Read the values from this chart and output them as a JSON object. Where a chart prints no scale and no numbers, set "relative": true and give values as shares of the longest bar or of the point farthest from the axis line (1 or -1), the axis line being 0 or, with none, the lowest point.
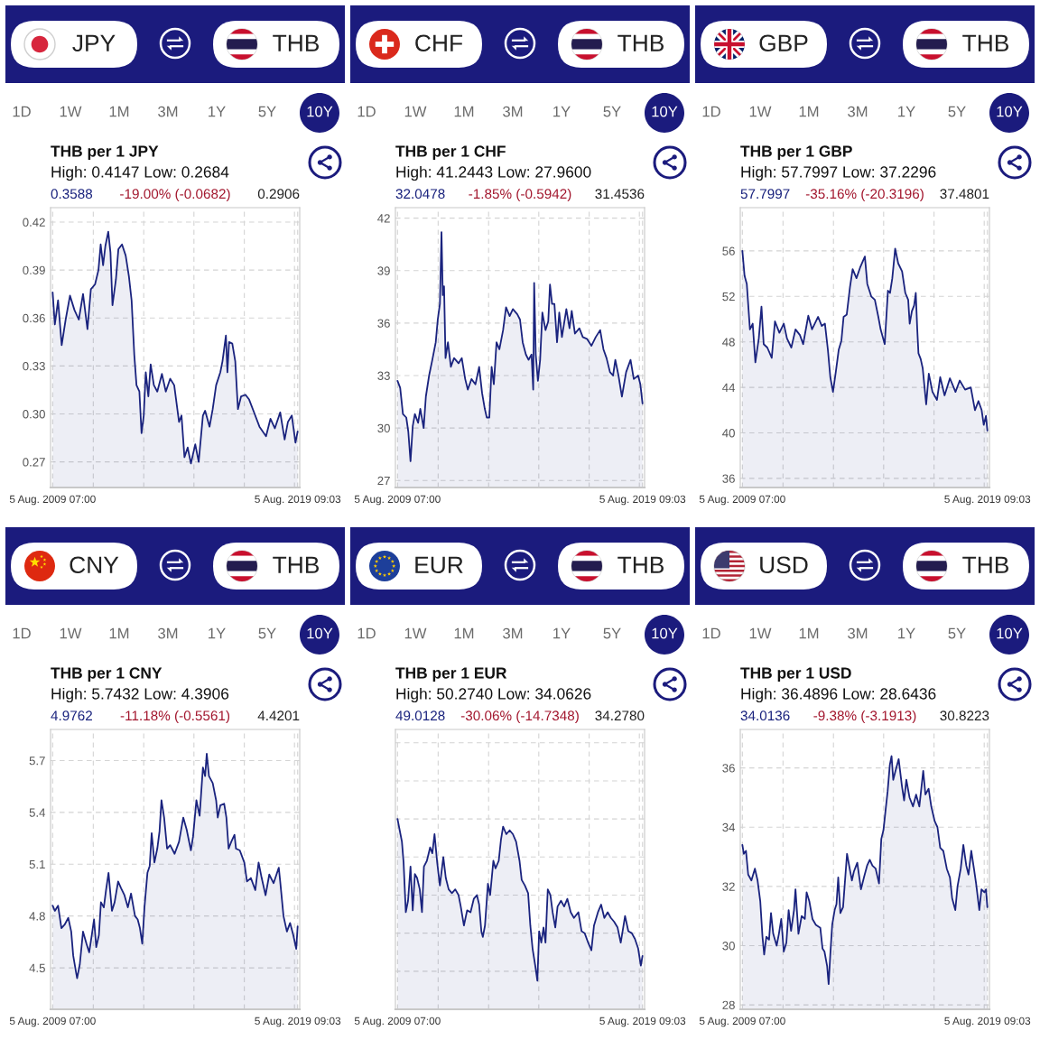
{
  "chart_data": [
    {
      "type": "area",
      "title": "THB per 1 JPY",
      "subtitle": "High: 0.4147 Low: 0.2684",
      "annotations": [
        "JPY",
        "THB",
        "1D",
        "1W",
        "1M",
        "3M",
        "1Y",
        "5Y",
        "10Y",
        "0.3588",
        "-19.00% (-0.0682)",
        "0.2906"
      ],
      "color": "#1a237e",
      "grid": true,
      "xlim": [
        "2009-07-05",
        "2019-09-05"
      ],
      "xticks": [
        {
          "value": "2009-08-05T07:00",
          "label": "5 Aug. 2009 07:00"
        },
        {
          "value": "2011-04-03",
          "label": null
        },
        {
          "value": "2013-04-24",
          "label": null
        },
        {
          "value": "2015-05-12",
          "label": null
        },
        {
          "value": "2017-06-01",
          "label": null
        },
        {
          "value": "2019-06-19",
          "label": null
        },
        {
          "value": "2019-08-05T09:03",
          "label": "5 Aug. 2019 09:03"
        }
      ],
      "ylim": [
        0.254,
        0.429
      ],
      "yticks": [
        0.27,
        {
          "value": 0.3,
          "label": "0.30"
        },
        0.33,
        0.36,
        0.39,
        0.42
      ],
      "x": [
        "2009-08-05T07:00",
        "2009-09-07",
        "2009-10-25",
        "2009-12-18",
        "2010-02-15",
        "2010-04-21",
        "2010-06-26",
        "2010-08-30",
        "2010-11-01",
        "2011-01-06",
        "2011-02-26",
        "2011-04-29",
        "2011-06-19",
        "2011-07-22",
        "2011-08-27",
        "2011-09-30",
        "2011-11-12",
        "2011-12-15",
        "2012-01-14",
        "2012-03-05",
        "2012-04-11",
        "2012-06-04",
        "2012-07-29",
        "2012-09-15",
        "2012-10-25",
        "2012-12-04",
        "2013-01-06",
        "2013-02-18",
        "2013-03-22",
        "2013-04-24",
        "2013-05-24",
        "2013-07-02",
        "2013-08-05",
        "2013-09-22",
        "2013-11-12",
        "2014-01-20",
        "2014-03-19",
        "2014-05-23",
        "2014-07-22",
        "2014-10-02",
        "2014-11-08",
        "2014-12-22",
        "2015-02-08",
        "2015-03-28",
        "2015-06-01",
        "2015-07-22",
        "2015-09-23",
        "2015-10-26",
        "2015-12-31",
        "2016-02-16",
        "2016-04-07",
        "2016-06-08",
        "2016-07-11",
        "2016-08-31",
        "2016-09-22",
        "2016-10-17",
        "2016-12-04",
        "2017-01-17",
        "2017-02-26",
        "2017-04-14",
        "2017-06-18",
        "2017-08-12",
        "2017-10-24",
        "2018-01-13",
        "2018-04-21",
        "2018-06-26",
        "2018-08-30",
        "2018-11-18",
        "2019-01-23",
        "2019-03-13",
        "2019-05-10",
        "2019-07-04",
        "2019-08-05"
      ],
      "values": [
        0.376,
        0.356,
        0.371,
        0.343,
        0.359,
        0.374,
        0.365,
        0.359,
        0.375,
        0.353,
        0.378,
        0.381,
        0.39,
        0.406,
        0.393,
        0.405,
        0.414,
        0.401,
        0.368,
        0.384,
        0.403,
        0.406,
        0.399,
        0.386,
        0.371,
        0.337,
        0.318,
        0.314,
        0.288,
        0.299,
        0.326,
        0.311,
        0.331,
        0.318,
        0.314,
        0.325,
        0.314,
        0.322,
        0.318,
        0.295,
        0.299,
        0.273,
        0.279,
        0.269,
        0.281,
        0.27,
        0.299,
        0.302,
        0.292,
        0.303,
        0.318,
        0.326,
        0.333,
        0.349,
        0.326,
        0.345,
        0.344,
        0.333,
        0.303,
        0.311,
        0.312,
        0.309,
        0.301,
        0.292,
        0.286,
        0.297,
        0.291,
        0.301,
        0.284,
        0.295,
        0.299,
        0.282,
        0.289
      ]
    },
    {
      "type": "area",
      "title": "THB per 1 CHF",
      "subtitle": "High: 41.2443 Low: 27.9600",
      "annotations": [
        "CHF",
        "THB",
        "1D",
        "1W",
        "1M",
        "3M",
        "1Y",
        "5Y",
        "10Y",
        "32.0478",
        "-1.85% (-0.5942)",
        "31.4536"
      ],
      "color": "#1a237e",
      "grid": true,
      "xlim": [
        "2009-07-05",
        "2019-09-05"
      ],
      "xticks": [
        {
          "value": "2009-08-05T07:00",
          "label": "5 Aug. 2009 07:00"
        },
        {
          "value": "2011-04-03",
          "label": null
        },
        {
          "value": "2013-04-24",
          "label": null
        },
        {
          "value": "2015-05-12",
          "label": null
        },
        {
          "value": "2017-06-01",
          "label": null
        },
        {
          "value": "2019-06-19",
          "label": null
        },
        {
          "value": "2019-08-05T09:03",
          "label": "5 Aug. 2019 09:03"
        }
      ],
      "ylim": [
        26.6,
        42.6
      ],
      "yticks": [
        27,
        30,
        33,
        36,
        39,
        42
      ],
      "x": [
        "2009-08-05T07:00",
        "2009-09-14",
        "2009-10-25",
        "2009-12-14",
        "2010-01-13",
        "2010-02-15",
        "2010-03-20",
        "2010-04-21",
        "2010-06-08",
        "2010-07-11",
        "2010-08-30",
        "2010-10-02",
        "2010-11-19",
        "2011-01-06",
        "2011-02-26",
        "2011-03-28",
        "2011-04-29",
        "2011-05-23",
        "2011-06-11",
        "2011-06-30",
        "2011-07-22",
        "2011-08-27",
        "2011-10-10",
        "2011-11-26",
        "2012-02-01",
        "2012-03-20",
        "2012-05-10",
        "2012-06-18",
        "2012-08-12",
        "2012-10-10",
        "2012-12-04",
        "2013-01-17",
        "2013-02-26",
        "2013-03-28",
        "2013-05-05",
        "2013-06-08",
        "2013-07-11",
        "2013-08-20",
        "2013-10-02",
        "2013-11-26",
        "2014-01-09",
        "2014-03-04",
        "2014-04-21",
        "2014-06-26",
        "2014-08-05",
        "2014-09-14",
        "2014-11-01",
        "2014-12-11",
        "2015-01-24",
        "2015-02-18",
        "2015-03-04",
        "2015-03-28",
        "2015-04-29",
        "2015-06-01",
        "2015-07-04",
        "2015-08-20",
        "2015-09-30",
        "2015-10-26",
        "2015-11-26",
        "2015-12-31",
        "2016-02-08",
        "2016-03-12",
        "2016-04-21",
        "2016-06-26",
        "2016-08-12",
        "2016-09-14",
        "2016-11-01",
        "2017-01-06",
        "2017-02-26",
        "2017-04-29",
        "2017-07-04",
        "2017-09-07",
        "2017-11-12",
        "2017-12-31",
        "2018-02-15",
        "2018-04-07",
        "2018-05-23",
        "2018-06-26",
        "2018-08-12",
        "2018-10-02",
        "2018-12-04",
        "2019-02-08",
        "2019-03-28",
        "2019-06-01",
        "2019-07-04",
        "2019-08-05"
      ],
      "values": [
        32.7,
        32.3,
        30.8,
        30.6,
        29.8,
        28.1,
        30.1,
        30.8,
        30.3,
        31.1,
        30.0,
        31.8,
        33.0,
        33.9,
        34.9,
        36.2,
        37.1,
        41.2,
        37.6,
        38.1,
        34.0,
        34.9,
        33.5,
        34.0,
        33.7,
        34.0,
        32.8,
        32.2,
        32.8,
        32.5,
        33.5,
        32.0,
        31.1,
        30.6,
        30.6,
        33.5,
        32.5,
        34.9,
        34.5,
        35.6,
        36.9,
        36.4,
        36.8,
        36.5,
        36.2,
        34.9,
        34.2,
        33.9,
        34.2,
        32.2,
        38.3,
        34.2,
        32.7,
        33.9,
        36.6,
        35.6,
        36.1,
        38.2,
        37.1,
        37.1,
        34.9,
        36.6,
        35.2,
        36.8,
        35.7,
        36.7,
        35.4,
        35.7,
        35.2,
        35.1,
        34.7,
        35.2,
        35.6,
        34.5,
        34.0,
        33.2,
        33.0,
        33.9,
        33.0,
        31.8,
        33.2,
        33.9,
        32.8,
        33.0,
        32.5,
        31.4
      ]
    },
    {
      "type": "area",
      "title": "THB per 1 GBP",
      "subtitle": "High: 57.7997 Low: 37.2296",
      "annotations": [
        "GBP",
        "THB",
        "1D",
        "1W",
        "1M",
        "3M",
        "1Y",
        "5Y",
        "10Y",
        "57.7997",
        "-35.16% (-20.3196)",
        "37.4801"
      ],
      "color": "#1a237e",
      "grid": true,
      "xlim": [
        "2009-07-05",
        "2019-09-05"
      ],
      "xticks": [
        {
          "value": "2009-08-05T07:00",
          "label": "5 Aug. 2009 07:00"
        },
        {
          "value": "2011-04-03",
          "label": null
        },
        {
          "value": "2013-04-24",
          "label": null
        },
        {
          "value": "2015-05-12",
          "label": null
        },
        {
          "value": "2017-06-01",
          "label": null
        },
        {
          "value": "2019-06-19",
          "label": null
        },
        {
          "value": "2019-08-05T09:03",
          "label": "5 Aug. 2019 09:03"
        }
      ],
      "ylim": [
        35.2,
        59.8
      ],
      "yticks": [
        36,
        40,
        44,
        48,
        52,
        56
      ],
      "x": [
        "2009-08-05T07:00",
        "2009-09-07",
        "2009-10-10",
        "2009-11-26",
        "2010-01-06",
        "2010-02-15",
        "2010-04-07",
        "2010-05-17",
        "2010-06-19",
        "2010-08-12",
        "2010-10-17",
        "2010-12-04",
        "2011-02-08",
        "2011-04-14",
        "2011-06-01",
        "2011-08-05",
        "2011-10-06",
        "2011-12-11",
        "2012-01-28",
        "2012-04-14",
        "2012-06-08",
        "2012-09-07",
        "2012-11-01",
        "2012-12-18",
        "2013-01-31",
        "2013-03-08",
        "2013-04-17",
        "2013-05-30",
        "2013-07-11",
        "2013-08-20",
        "2013-09-22",
        "2013-11-08",
        "2013-12-26",
        "2014-02-04",
        "2014-04-02",
        "2014-05-30",
        "2014-08-05",
        "2014-09-10",
        "2014-11-08",
        "2015-01-01",
        "2015-02-22",
        "2015-03-28",
        "2015-05-28",
        "2015-07-15",
        "2015-08-15",
        "2015-09-18",
        "2015-10-31",
        "2015-12-15",
        "2016-02-11",
        "2016-03-30",
        "2016-05-12",
        "2016-06-03",
        "2016-07-06",
        "2016-08-08",
        "2016-09-02",
        "2016-09-24",
        "2016-10-12",
        "2016-11-14",
        "2016-12-14",
        "2017-02-04",
        "2017-03-15",
        "2017-05-09",
        "2017-07-15",
        "2017-09-01",
        "2017-11-05",
        "2018-01-24",
        "2018-04-17",
        "2018-06-19",
        "2018-09-07",
        "2018-12-01",
        "2019-02-01",
        "2019-03-25",
        "2019-05-12",
        "2019-06-12",
        "2019-07-15",
        "2019-08-05"
      ],
      "values": [
        56.0,
        53.8,
        53.1,
        49.1,
        49.6,
        46.2,
        48.3,
        51.1,
        47.8,
        47.5,
        46.6,
        49.8,
        48.8,
        49.6,
        48.3,
        47.5,
        49.1,
        48.6,
        47.8,
        50.3,
        49.1,
        50.2,
        49.4,
        49.6,
        47.3,
        44.9,
        43.6,
        45.4,
        47.3,
        48.1,
        50.2,
        50.4,
        52.8,
        54.4,
        53.6,
        54.6,
        55.5,
        53.1,
        52.0,
        51.7,
        50.2,
        49.1,
        47.8,
        52.5,
        52.3,
        53.6,
        56.2,
        54.9,
        54.2,
        52.3,
        51.7,
        49.6,
        50.7,
        51.2,
        52.3,
        49.1,
        47.0,
        46.5,
        45.7,
        42.5,
        45.2,
        43.6,
        42.9,
        44.9,
        43.3,
        44.8,
        43.6,
        44.6,
        43.8,
        44.0,
        42.0,
        42.8,
        42.0,
        40.7,
        41.5,
        40.2
      ]
    },
    {
      "type": "area",
      "title": "THB per 1 CNY",
      "subtitle": "High: 5.7432 Low: 4.3906",
      "annotations": [
        "CNY",
        "THB",
        "1D",
        "1W",
        "1M",
        "3M",
        "1Y",
        "5Y",
        "10Y",
        "4.9762",
        "-11.18% (-0.5561)",
        "4.4201"
      ],
      "color": "#1a237e",
      "grid": true,
      "xlim": [
        "2009-07-05",
        "2019-09-05"
      ],
      "xticks": [
        {
          "value": "2009-08-05T07:00",
          "label": "5 Aug. 2009 07:00"
        },
        {
          "value": "2011-04-03",
          "label": null
        },
        {
          "value": "2013-04-24",
          "label": null
        },
        {
          "value": "2015-05-12",
          "label": null
        },
        {
          "value": "2017-06-01",
          "label": null
        },
        {
          "value": "2019-06-19",
          "label": null
        },
        {
          "value": "2019-08-05T09:03",
          "label": "5 Aug. 2019 09:03"
        }
      ],
      "ylim": [
        4.26,
        5.88
      ],
      "yticks": [
        4.5,
        4.8,
        5.1,
        5.4,
        5.7
      ],
      "x": [
        "2009-08-05T07:00",
        "2009-09-07",
        "2009-10-25",
        "2009-12-14",
        "2010-01-31",
        "2010-03-26",
        "2010-05-09",
        "2010-06-08",
        "2010-07-22",
        "2010-08-05",
        "2010-09-14",
        "2010-11-01",
        "2010-12-22",
        "2011-02-01",
        "2011-03-12",
        "2011-04-14",
        "2011-05-17",
        "2011-06-26",
        "2011-07-26",
        "2011-09-07",
        "2011-10-10",
        "2011-11-16",
        "2012-01-06",
        "2012-02-15",
        "2012-04-07",
        "2012-05-23",
        "2012-07-11",
        "2012-08-30",
        "2012-10-17",
        "2012-12-15",
        "2013-01-24",
        "2013-02-26",
        "2013-04-02",
        "2013-05-05",
        "2013-06-18",
        "2013-07-22",
        "2013-08-20",
        "2013-09-30",
        "2013-11-12",
        "2013-12-15",
        "2014-01-13",
        "2014-02-22",
        "2014-04-07",
        "2014-05-23",
        "2014-07-28",
        "2014-10-02",
        "2014-12-04",
        "2015-01-24",
        "2015-03-28",
        "2015-04-29",
        "2015-06-18",
        "2015-08-05",
        "2015-09-23",
        "2015-10-26",
        "2015-11-19",
        "2015-12-22",
        "2016-02-16",
        "2016-04-07",
        "2016-05-01",
        "2016-06-08",
        "2016-08-05",
        "2016-09-07",
        "2016-10-10",
        "2016-11-19",
        "2017-01-06",
        "2017-01-28",
        "2017-03-26",
        "2017-06-01",
        "2017-07-11",
        "2017-09-07",
        "2017-11-12",
        "2017-12-31",
        "2018-02-15",
        "2018-04-14",
        "2018-06-08",
        "2018-08-12",
        "2018-10-28",
        "2018-11-18",
        "2019-01-06",
        "2019-02-26",
        "2019-04-14",
        "2019-06-01",
        "2019-07-15",
        "2019-08-05"
      ],
      "values": [
        4.86,
        4.83,
        4.86,
        4.73,
        4.75,
        4.79,
        4.71,
        4.57,
        4.47,
        4.44,
        4.52,
        4.71,
        4.64,
        4.59,
        4.69,
        4.78,
        4.62,
        4.69,
        4.88,
        4.85,
        4.95,
        5.05,
        4.83,
        4.88,
        5.0,
        4.96,
        4.92,
        4.85,
        4.93,
        4.8,
        4.78,
        4.73,
        4.64,
        4.85,
        5.05,
        5.09,
        5.28,
        5.11,
        5.19,
        5.29,
        5.47,
        5.37,
        5.19,
        5.21,
        5.16,
        5.23,
        5.37,
        5.3,
        5.18,
        5.26,
        5.47,
        5.38,
        5.66,
        5.61,
        5.74,
        5.61,
        5.57,
        5.47,
        5.37,
        5.44,
        5.45,
        5.37,
        5.19,
        5.23,
        5.27,
        5.19,
        5.18,
        5.11,
        5.0,
        5.02,
        4.95,
        5.11,
        5.02,
        4.92,
        5.04,
        4.99,
        5.08,
        5.0,
        4.8,
        4.71,
        4.76,
        4.69,
        4.61,
        4.74
      ]
    },
    {
      "type": "area",
      "title": "THB per 1 EUR",
      "subtitle": "High: 50.2740 Low: 34.0626",
      "annotations": [
        "EUR",
        "THB",
        "1D",
        "1W",
        "1M",
        "3M",
        "1Y",
        "5Y",
        "10Y",
        "49.0128",
        "-30.06% (-14.7348)",
        "34.2780"
      ],
      "color": "#1a237e",
      "grid": true,
      "relative": true,
      "xlim": [
        "2009-07-05",
        "2019-09-05"
      ],
      "xticks": [
        {
          "value": "2009-08-05T07:00",
          "label": "5 Aug. 2009 07:00"
        },
        {
          "value": "2011-04-03",
          "label": null
        },
        {
          "value": "2013-04-24",
          "label": null
        },
        {
          "value": "2015-05-12",
          "label": null
        },
        {
          "value": "2017-06-01",
          "label": null
        },
        {
          "value": "2019-06-19",
          "label": null
        },
        {
          "value": "2019-08-05T09:03",
          "label": "5 Aug. 2019 09:03"
        }
      ],
      "x": [
        "2009-08-05T07:00",
        "2009-09-07",
        "2009-10-10",
        "2009-11-04",
        "2009-12-07",
        "2010-01-09",
        "2010-02-15",
        "2010-03-20",
        "2010-04-21",
        "2010-05-24",
        "2010-07-03",
        "2010-08-05",
        "2010-09-03",
        "2010-10-17",
        "2010-12-04",
        "2011-01-06",
        "2011-02-08",
        "2011-03-20",
        "2011-04-29",
        "2011-06-19",
        "2011-07-26",
        "2011-09-07",
        "2011-10-25",
        "2011-12-14",
        "2012-02-01",
        "2012-03-05",
        "2012-04-21",
        "2012-06-08",
        "2012-07-29",
        "2012-09-15",
        "2012-11-01",
        "2012-12-04",
        "2013-01-06",
        "2013-01-28",
        "2013-03-01",
        "2013-04-14",
        "2013-05-17",
        "2013-07-04",
        "2013-08-05",
        "2013-09-22",
        "2013-10-25",
        "2013-11-26",
        "2014-01-13",
        "2014-03-04",
        "2014-04-21",
        "2014-06-08",
        "2014-07-29",
        "2014-08-30",
        "2014-10-17",
        "2014-12-04",
        "2015-01-06",
        "2015-02-08",
        "2015-03-20",
        "2015-04-21",
        "2015-05-17",
        "2015-06-18",
        "2015-07-22",
        "2015-08-20",
        "2015-09-23",
        "2015-11-01",
        "2015-12-04",
        "2016-01-13",
        "2016-02-16",
        "2016-04-07",
        "2016-05-24",
        "2016-07-11",
        "2016-08-30",
        "2016-10-17",
        "2016-12-22",
        "2017-02-08",
        "2017-03-26",
        "2017-05-17",
        "2017-07-04",
        "2017-08-12",
        "2017-10-10",
        "2017-11-26",
        "2018-01-13",
        "2018-03-04",
        "2018-04-21",
        "2018-06-08",
        "2018-07-29",
        "2018-09-15",
        "2018-11-18",
        "2019-01-06",
        "2019-02-26",
        "2019-04-14",
        "2019-06-01",
        "2019-07-11",
        "2019-08-05"
      ],
      "values": [
        1.0,
        0.94,
        0.88,
        0.77,
        0.51,
        0.57,
        0.75,
        0.52,
        0.71,
        0.69,
        0.63,
        0.51,
        0.75,
        0.78,
        0.85,
        0.82,
        0.92,
        0.77,
        0.65,
        0.8,
        0.69,
        0.63,
        0.61,
        0.63,
        0.6,
        0.54,
        0.44,
        0.52,
        0.51,
        0.58,
        0.6,
        0.55,
        0.41,
        0.38,
        0.44,
        0.66,
        0.6,
        0.78,
        0.74,
        0.78,
        0.89,
        0.96,
        0.92,
        0.94,
        0.92,
        0.88,
        0.78,
        0.68,
        0.65,
        0.61,
        0.44,
        0.32,
        0.23,
        0.15,
        0.41,
        0.35,
        0.43,
        0.35,
        0.63,
        0.6,
        0.51,
        0.43,
        0.54,
        0.57,
        0.54,
        0.58,
        0.51,
        0.48,
        0.51,
        0.41,
        0.4,
        0.35,
        0.31,
        0.44,
        0.51,
        0.55,
        0.48,
        0.51,
        0.48,
        0.46,
        0.43,
        0.35,
        0.49,
        0.41,
        0.4,
        0.37,
        0.32,
        0.23,
        0.28
      ]
    },
    {
      "type": "area",
      "title": "THB per 1 USD",
      "subtitle": "High: 36.4896 Low: 28.6436",
      "annotations": [
        "USD",
        "THB",
        "1D",
        "1W",
        "1M",
        "3M",
        "1Y",
        "5Y",
        "10Y",
        "34.0136",
        "-9.38% (-3.1913)",
        "30.8223"
      ],
      "color": "#1a237e",
      "grid": true,
      "xlim": [
        "2009-07-05",
        "2019-09-05"
      ],
      "xticks": [
        {
          "value": "2009-08-05T07:00",
          "label": "5 Aug. 2009 07:00"
        },
        {
          "value": "2011-04-03",
          "label": null
        },
        {
          "value": "2013-04-24",
          "label": null
        },
        {
          "value": "2015-05-12",
          "label": null
        },
        {
          "value": "2017-06-01",
          "label": null
        },
        {
          "value": "2019-06-19",
          "label": null
        },
        {
          "value": "2019-08-05T09:03",
          "label": "5 Aug. 2019 09:03"
        }
      ],
      "ylim": [
        27.85,
        37.3
      ],
      "yticks": [
        28,
        30,
        32,
        34,
        36
      ],
      "x": [
        "2009-08-05T07:00",
        "2009-08-27",
        "2009-09-28",
        "2009-10-31",
        "2009-12-18",
        "2010-02-08",
        "2010-03-20",
        "2010-04-29",
        "2010-06-01",
        "2010-06-26",
        "2010-07-29",
        "2010-09-07",
        "2010-10-06",
        "2010-11-08",
        "2010-12-29",
        "2011-02-01",
        "2011-03-08",
        "2011-04-14",
        "2011-05-23",
        "2011-06-26",
        "2011-08-01",
        "2011-09-14",
        "2011-10-06",
        "2011-11-19",
        "2012-01-06",
        "2012-02-22",
        "2012-03-20",
        "2012-04-29",
        "2012-06-15",
        "2012-08-05",
        "2012-10-10",
        "2012-11-12",
        "2012-12-11",
        "2013-01-20",
        "2013-02-11",
        "2013-03-08",
        "2013-04-05",
        "2013-05-12",
        "2013-06-08",
        "2013-07-04",
        "2013-08-05",
        "2013-09-14",
        "2013-10-10",
        "2013-11-12",
        "2013-12-22",
        "2014-01-24",
        "2014-02-22",
        "2014-04-14",
        "2014-06-08",
        "2014-07-22",
        "2014-09-07",
        "2014-10-17",
        "2014-11-26",
        "2015-01-13",
        "2015-03-04",
        "2015-04-07",
        "2015-05-09",
        "2015-06-11",
        "2015-07-10",
        "2015-08-12",
        "2015-09-07",
        "2015-10-02",
        "2015-11-04",
        "2015-12-22",
        "2016-02-08",
        "2016-03-12",
        "2016-04-14",
        "2016-06-01",
        "2016-07-22",
        "2016-09-07",
        "2016-10-25",
        "2016-12-22",
        "2017-01-24",
        "2017-03-12",
        "2017-04-21",
        "2017-06-11",
        "2017-07-22",
        "2017-09-01",
        "2017-10-17",
        "2017-12-08",
        "2018-01-24",
        "2018-02-26",
        "2018-04-14",
        "2018-05-17",
        "2018-07-04",
        "2018-08-12",
        "2018-09-25",
        "2018-10-28",
        "2018-12-08",
        "2019-01-17",
        "2019-02-18",
        "2019-04-07",
        "2019-05-09",
        "2019-06-22",
        "2019-07-15",
        "2019-08-05"
      ],
      "values": [
        33.4,
        33.1,
        33.2,
        32.4,
        32.2,
        32.6,
        32.2,
        31.5,
        30.3,
        29.7,
        30.3,
        30.2,
        31.1,
        30.4,
        30.0,
        30.4,
        30.9,
        29.8,
        30.1,
        31.2,
        30.5,
        31.2,
        31.9,
        30.4,
        31.0,
        30.9,
        31.8,
        31.5,
        30.9,
        30.7,
        30.6,
        29.9,
        29.8,
        29.3,
        28.7,
        29.7,
        30.7,
        31.2,
        31.4,
        32.3,
        31.1,
        31.3,
        32.1,
        33.1,
        32.6,
        32.2,
        32.5,
        32.8,
        31.9,
        32.3,
        32.7,
        32.9,
        32.7,
        32.6,
        32.1,
        33.6,
        33.9,
        34.6,
        35.2,
        36.1,
        36.4,
        35.6,
        35.9,
        36.3,
        35.4,
        34.9,
        35.6,
        35.0,
        34.7,
        35.1,
        34.7,
        35.9,
        35.1,
        35.3,
        34.7,
        34.2,
        34.0,
        33.3,
        33.2,
        32.6,
        32.3,
        31.6,
        31.2,
        32.0,
        32.6,
        33.4,
        32.7,
        32.4,
        33.2,
        32.6,
        32.1,
        31.2,
        31.9,
        31.8,
        31.9,
        31.3
      ]
    }
  ]
}
